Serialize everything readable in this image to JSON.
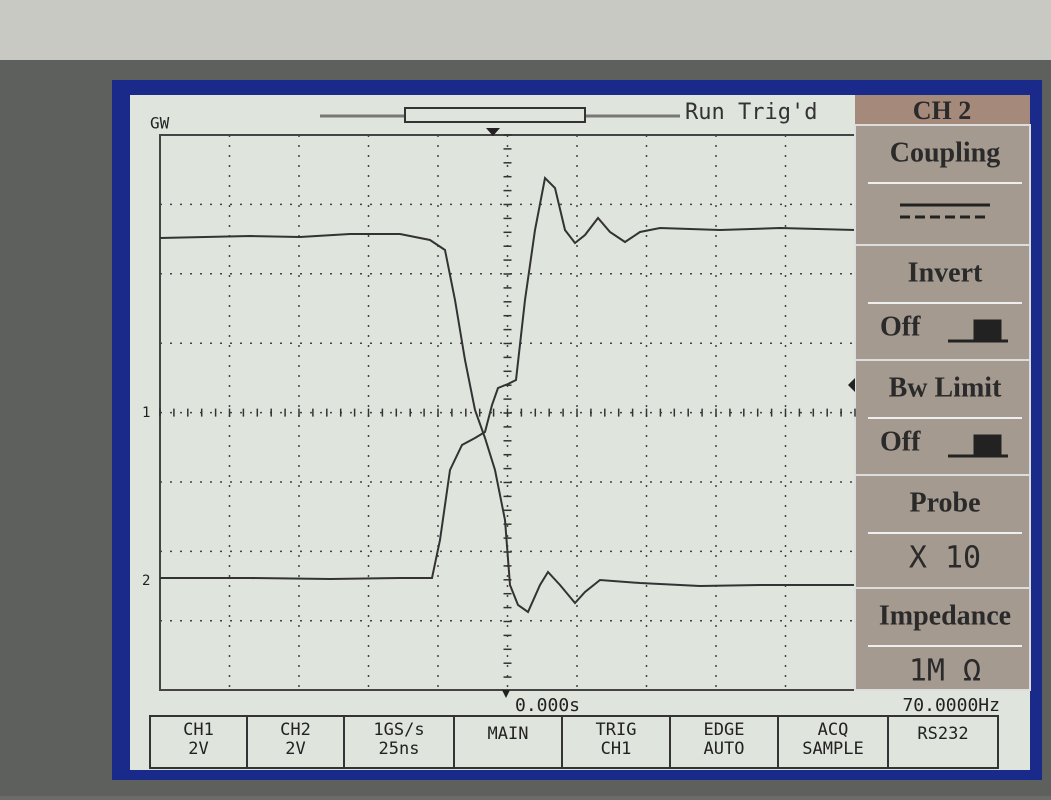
{
  "header": {
    "brand": "GW",
    "status": "Run Trig'd"
  },
  "menu": {
    "title": "CH 2",
    "items": [
      {
        "label": "Coupling"
      },
      {
        "label": "Invert",
        "value": "Off"
      },
      {
        "label": "Bw Limit",
        "value": "Off"
      },
      {
        "label": "Probe",
        "value": "X 10"
      },
      {
        "label": "Impedance",
        "value": "1M Ω"
      }
    ]
  },
  "markers": {
    "ch1": "1",
    "ch2": "2"
  },
  "status_bar": {
    "time_offset": "0.000s",
    "frequency": "70.0000Hz",
    "cells": [
      [
        "CH1",
        "2V"
      ],
      [
        "CH2",
        "2V"
      ],
      [
        "1GS/s",
        "25ns"
      ],
      [
        "MAIN"
      ],
      [
        "TRIG",
        "CH1"
      ],
      [
        "EDGE",
        "AUTO"
      ],
      [
        "ACQ",
        "SAMPLE"
      ],
      [
        "RS232"
      ]
    ]
  }
}
